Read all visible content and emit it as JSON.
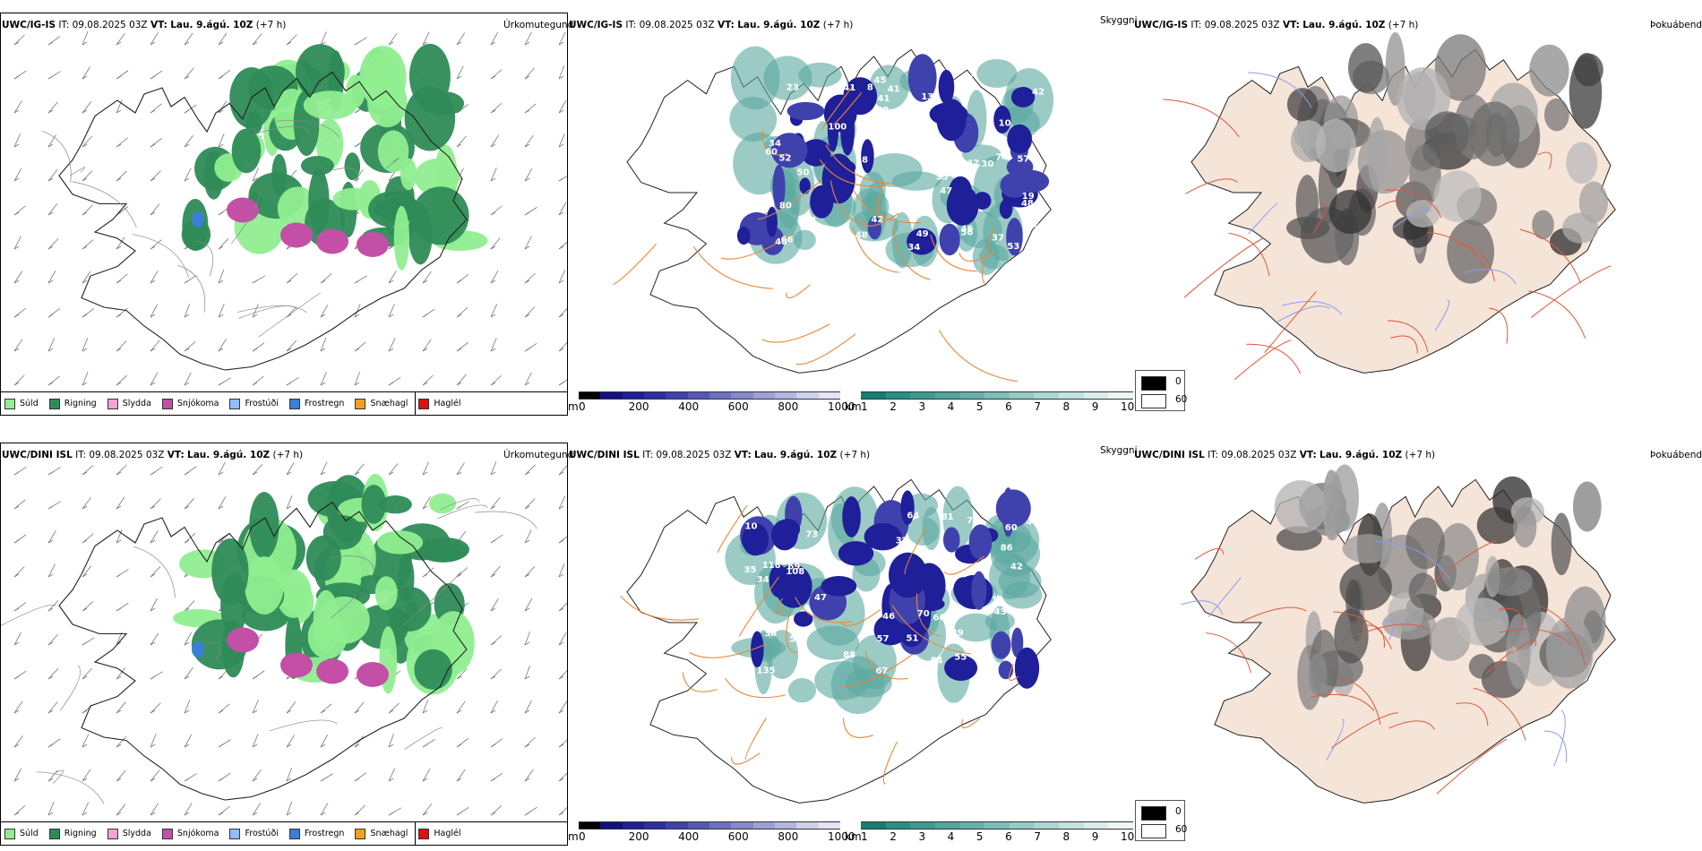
{
  "rows": [
    {
      "model": "UWC/IG-IS",
      "it_label": "IT:",
      "it": "09.08.2025 03Z",
      "vt_label": "VT:",
      "vt": "Lau. 9.ágú. 10Z",
      "lead": "(+7 h)",
      "labels": {
        "cloudbase": [
          "42",
          "41",
          "38",
          "42",
          "58",
          "52",
          "106",
          "37",
          "48",
          "46",
          "54",
          "46",
          "13",
          "42",
          "48",
          "53",
          "10",
          "41",
          "72",
          "74",
          "48",
          "23",
          "60",
          "80",
          "56",
          "30",
          "41",
          "80",
          "45",
          "34",
          "49",
          "100",
          "35",
          "70",
          "47",
          "34",
          "50",
          "57",
          "66",
          "19",
          "8"
        ]
      }
    },
    {
      "model": "UWC/DINI ISL",
      "it_label": "IT:",
      "it": "09.08.2025 03Z",
      "vt_label": "VT:",
      "vt": "Lau. 9.ágú. 10Z",
      "lead": "(+7 h)",
      "labels": {
        "cloudbase": [
          "57",
          "42",
          "43",
          "51",
          "47",
          "86",
          "66",
          "35",
          "67",
          "38",
          "32",
          "60",
          "108",
          "69",
          "64",
          "31",
          "73",
          "72",
          "70",
          "135",
          "11",
          "54",
          "46",
          "56",
          "81",
          "88",
          "10",
          "34",
          "46",
          "55",
          "118",
          "49"
        ]
      }
    }
  ],
  "titles": {
    "precip_type": "Úrkomutegund",
    "visibility": "Skyggni",
    "fog": "Þokuábendi"
  },
  "precip_legend": [
    {
      "label": "Súld",
      "color": "#90ee90"
    },
    {
      "label": "Rigning",
      "color": "#2e8b57"
    },
    {
      "label": "Slydda",
      "color": "#f5a3d6"
    },
    {
      "label": "Snjókoma",
      "color": "#c34fa7"
    },
    {
      "label": "Frostúði",
      "color": "#8fbfff"
    },
    {
      "label": "Frostregn",
      "color": "#3a7fd5"
    },
    {
      "label": "Snæhagl",
      "color": "#f0a020"
    },
    {
      "label": "Haglél",
      "color": "#e01010"
    }
  ],
  "cloud_bar": {
    "unit": "m",
    "ticks": [
      "0",
      "200",
      "400",
      "600",
      "800",
      "1000"
    ],
    "colors": [
      "#000000",
      "#13117f",
      "#1f1f99",
      "#2c2ea5",
      "#3f42ad",
      "#5558b6",
      "#6d70c2",
      "#8488cc",
      "#9da0d7",
      "#b3b6e1",
      "#cfd1ec",
      "#e3e4f4"
    ]
  },
  "vis_bar": {
    "unit": "km",
    "ticks": [
      "1",
      "2",
      "3",
      "4",
      "5",
      "6",
      "7",
      "8",
      "9",
      "10"
    ],
    "colors": [
      "#137f73",
      "#2a8f85",
      "#3d9a91",
      "#52a59d",
      "#67b1aa",
      "#7dbeb8",
      "#94cbc5",
      "#abd7d2",
      "#c2e3df",
      "#d8eeeb",
      "#eef7f6"
    ]
  },
  "fog_legend": [
    {
      "label": "0",
      "color": "#000000"
    },
    {
      "label": "60",
      "color": "#ffffff"
    }
  ]
}
